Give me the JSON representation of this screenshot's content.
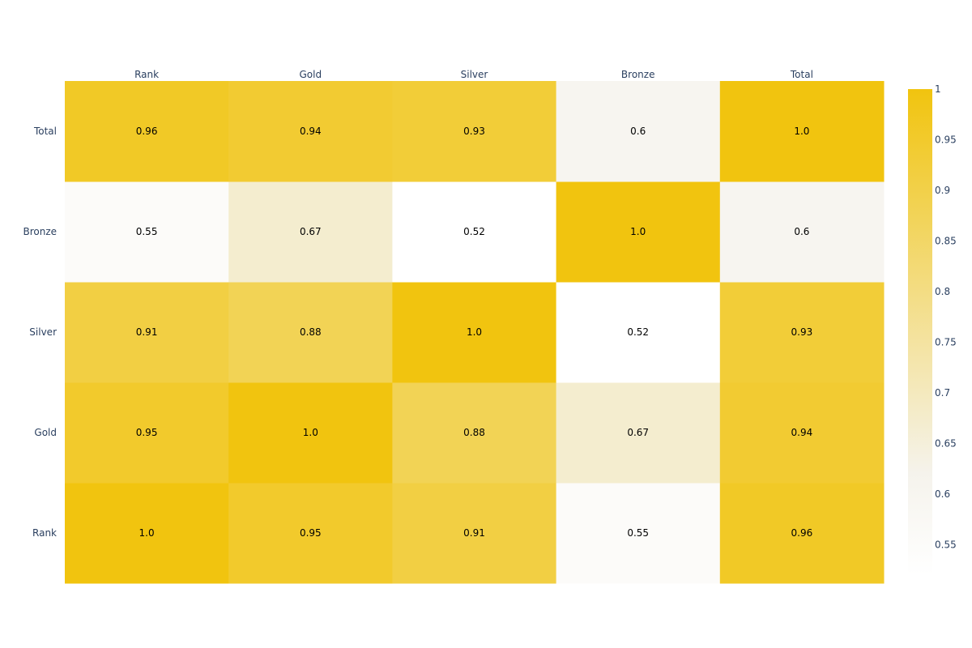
{
  "chart_data": {
    "type": "heatmap",
    "x_labels": [
      "Rank",
      "Gold",
      "Silver",
      "Bronze",
      "Total"
    ],
    "y_labels": [
      "Rank",
      "Gold",
      "Silver",
      "Bronze",
      "Total"
    ],
    "z": [
      [
        1.0,
        0.95,
        0.91,
        0.55,
        0.96
      ],
      [
        0.95,
        1.0,
        0.88,
        0.67,
        0.94
      ],
      [
        0.91,
        0.88,
        1.0,
        0.52,
        0.93
      ],
      [
        0.55,
        0.67,
        0.52,
        1.0,
        0.6
      ],
      [
        0.96,
        0.94,
        0.93,
        0.6,
        1.0
      ]
    ],
    "cell_text": [
      [
        "1.0",
        "0.95",
        "0.91",
        "0.55",
        "0.96"
      ],
      [
        "0.95",
        "1.0",
        "0.88",
        "0.67",
        "0.94"
      ],
      [
        "0.91",
        "0.88",
        "1.0",
        "0.52",
        "0.93"
      ],
      [
        "0.55",
        "0.67",
        "0.52",
        "1.0",
        "0.6"
      ],
      [
        "0.96",
        "0.94",
        "0.93",
        "0.6",
        "1.0"
      ]
    ],
    "x_axis_position": "top",
    "y_order": "bottom-to-top",
    "zmin": 0.52,
    "zmax": 1.0,
    "colorscale": {
      "low_color": "#ffffff",
      "mid_value": 0.62,
      "mid_color": "#f5f3ec",
      "high_color": "#f1c40f"
    },
    "colorbar": {
      "tick_values": [
        0.55,
        0.6,
        0.65,
        0.7,
        0.75,
        0.8,
        0.85,
        0.9,
        0.95,
        1
      ],
      "tick_labels": [
        "0.55",
        "0.6",
        "0.65",
        "0.7",
        "0.75",
        "0.8",
        "0.85",
        "0.9",
        "0.95",
        "1"
      ],
      "position": "right"
    },
    "title": "",
    "xlabel": "",
    "ylabel": ""
  }
}
